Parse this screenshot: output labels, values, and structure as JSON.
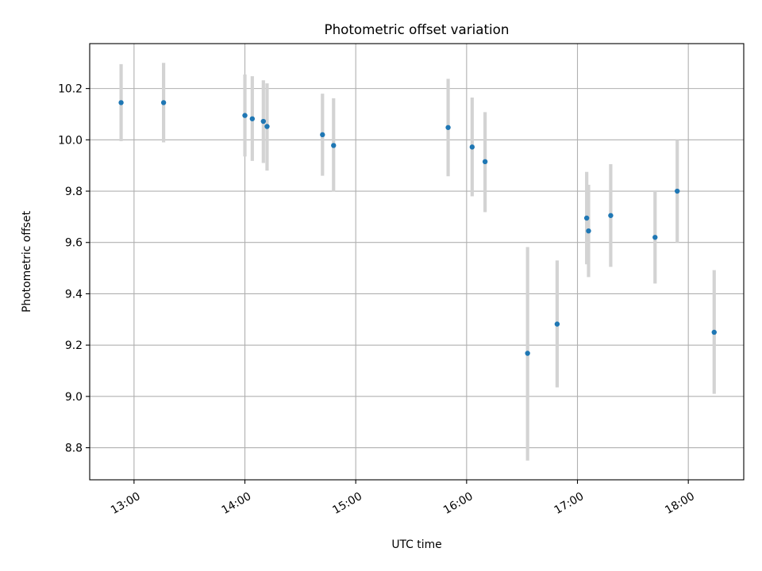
{
  "chart_data": {
    "type": "scatter",
    "title": "Photometric offset variation",
    "xlabel": "UTC time",
    "ylabel": "Photometric offset",
    "xlim": [
      "12:36",
      "18:30"
    ],
    "ylim": [
      8.675,
      10.375
    ],
    "grid": true,
    "x_ticks": [
      "13:00",
      "14:00",
      "15:00",
      "16:00",
      "17:00",
      "18:00"
    ],
    "y_ticks": [
      "8.8",
      "9.0",
      "9.2",
      "9.4",
      "9.6",
      "9.8",
      "10.0",
      "10.2"
    ],
    "series": [
      {
        "marker_color": "#1f77b4",
        "errorbar_color": "#d3d3d3",
        "points": [
          {
            "x": "12:53",
            "y": 10.145,
            "lo": 9.995,
            "hi": 10.295
          },
          {
            "x": "13:16",
            "y": 10.145,
            "lo": 9.99,
            "hi": 10.3
          },
          {
            "x": "14:00",
            "y": 10.095,
            "lo": 9.935,
            "hi": 10.255
          },
          {
            "x": "14:04",
            "y": 10.082,
            "lo": 9.918,
            "hi": 10.248
          },
          {
            "x": "14:10",
            "y": 10.072,
            "lo": 9.91,
            "hi": 10.232
          },
          {
            "x": "14:12",
            "y": 10.052,
            "lo": 9.88,
            "hi": 10.22
          },
          {
            "x": "14:42",
            "y": 10.02,
            "lo": 9.86,
            "hi": 10.18
          },
          {
            "x": "14:48",
            "y": 9.978,
            "lo": 9.798,
            "hi": 10.162
          },
          {
            "x": "15:50",
            "y": 10.048,
            "lo": 9.858,
            "hi": 10.238
          },
          {
            "x": "16:03",
            "y": 9.972,
            "lo": 9.78,
            "hi": 10.165
          },
          {
            "x": "16:10",
            "y": 9.915,
            "lo": 9.718,
            "hi": 10.108
          },
          {
            "x": "16:33",
            "y": 9.168,
            "lo": 8.75,
            "hi": 9.582
          },
          {
            "x": "16:49",
            "y": 9.282,
            "lo": 9.035,
            "hi": 9.53
          },
          {
            "x": "17:05",
            "y": 9.695,
            "lo": 9.515,
            "hi": 9.875
          },
          {
            "x": "17:06",
            "y": 9.645,
            "lo": 9.465,
            "hi": 9.825
          },
          {
            "x": "17:18",
            "y": 9.705,
            "lo": 9.505,
            "hi": 9.905
          },
          {
            "x": "17:42",
            "y": 9.62,
            "lo": 9.44,
            "hi": 9.8
          },
          {
            "x": "17:54",
            "y": 9.8,
            "lo": 9.6,
            "hi": 10.0
          },
          {
            "x": "18:14",
            "y": 9.25,
            "lo": 9.01,
            "hi": 9.492
          }
        ]
      }
    ]
  }
}
